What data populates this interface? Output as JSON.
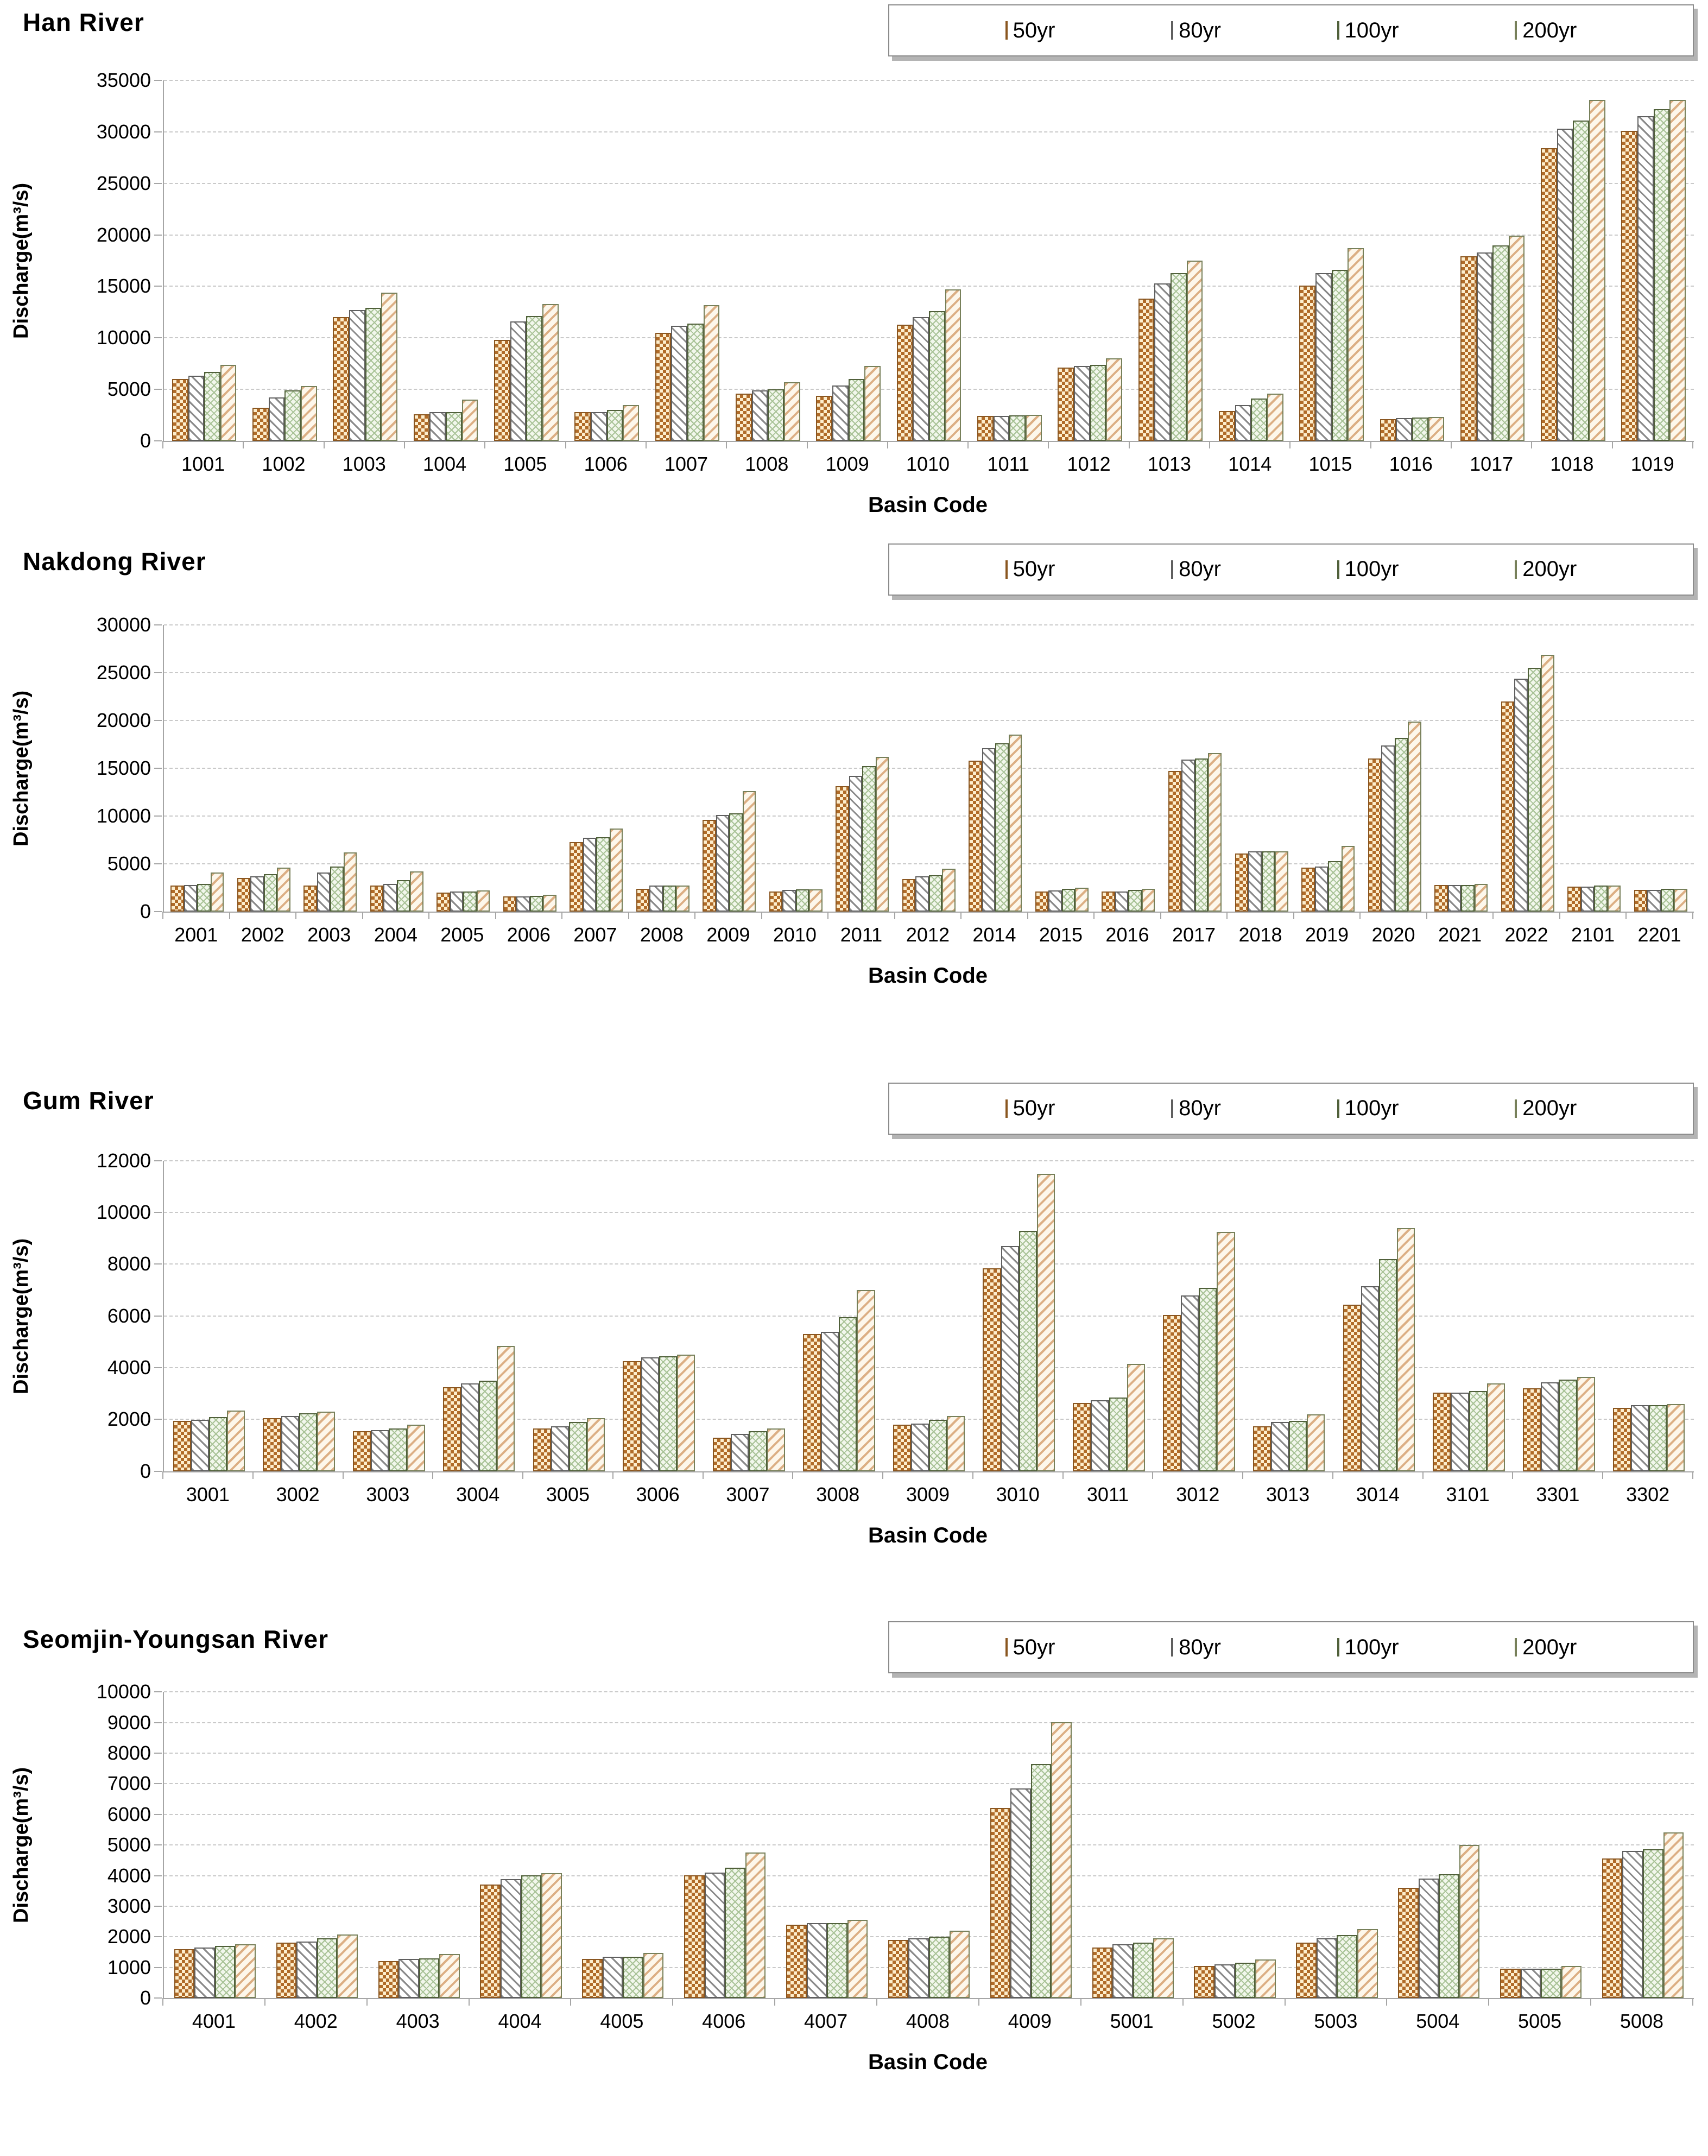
{
  "page": {
    "background": "#ffffff"
  },
  "legend": {
    "items": [
      "50yr",
      "80yr",
      "100yr",
      "200yr"
    ]
  },
  "series_styles": [
    {
      "name": "50yr",
      "pattern": "checkerboard",
      "fill": "#fdeecd",
      "ink": "#b06b28",
      "border": "#8a5620"
    },
    {
      "name": "80yr",
      "pattern": "diagonal-stripe-down",
      "fill": "#ffffff",
      "ink": "#8a8a8a",
      "border": "#5f5f5f"
    },
    {
      "name": "100yr",
      "pattern": "green-crosshatch",
      "fill": "#f2f7ec",
      "ink": "#a8c296",
      "border": "#50603a"
    },
    {
      "name": "200yr",
      "pattern": "diagonal-stripe-up",
      "fill": "#fdf7eb",
      "ink": "#dcaf84",
      "border": "#77805a"
    }
  ],
  "chart_data": [
    {
      "type": "bar",
      "title": "Han River",
      "xlabel": "Basin Code",
      "ylabel": "Discharge(m³/s)",
      "ylim": [
        0,
        35000
      ],
      "ystep": 5000,
      "yticks": [
        "0",
        "5000",
        "10000",
        "15000",
        "20000",
        "25000",
        "30000",
        "35000"
      ],
      "grid": true,
      "legend_position": "top-right",
      "categories": [
        "1001",
        "1002",
        "1003",
        "1004",
        "1005",
        "1006",
        "1007",
        "1008",
        "1009",
        "1010",
        "1011",
        "1012",
        "1013",
        "1014",
        "1015",
        "1016",
        "1017",
        "1018",
        "1019"
      ],
      "series": [
        {
          "name": "50yr",
          "values": [
            6000,
            3200,
            12000,
            2600,
            9800,
            2800,
            10500,
            4600,
            4400,
            11300,
            2400,
            7100,
            13800,
            2900,
            15100,
            2100,
            17900,
            28400,
            30100
          ]
        },
        {
          "name": "80yr",
          "values": [
            6300,
            4200,
            12700,
            2800,
            11600,
            2800,
            11200,
            4900,
            5400,
            12000,
            2450,
            7300,
            15300,
            3500,
            16300,
            2200,
            18300,
            30300,
            31500
          ]
        },
        {
          "name": "100yr",
          "values": [
            6700,
            4900,
            12900,
            2800,
            12100,
            3000,
            11400,
            5000,
            6000,
            12600,
            2500,
            7400,
            16300,
            4100,
            16600,
            2250,
            19000,
            31100,
            32200
          ]
        },
        {
          "name": "200yr",
          "values": [
            7400,
            5300,
            14400,
            4000,
            13300,
            3500,
            13200,
            5700,
            7300,
            14700,
            2550,
            8000,
            17500,
            4600,
            18700,
            2300,
            19900,
            33100,
            33100
          ]
        }
      ]
    },
    {
      "type": "bar",
      "title": "Nakdong River",
      "xlabel": "Basin Code",
      "ylabel": "Discharge(m³/s)",
      "ylim": [
        0,
        30000
      ],
      "ystep": 5000,
      "yticks": [
        "0",
        "5000",
        "10000",
        "15000",
        "20000",
        "25000",
        "30000"
      ],
      "grid": true,
      "legend_position": "top-right",
      "categories": [
        "2001",
        "2002",
        "2003",
        "2004",
        "2005",
        "2006",
        "2007",
        "2008",
        "2009",
        "2010",
        "2011",
        "2012",
        "2014",
        "2015",
        "2016",
        "2017",
        "2018",
        "2019",
        "2020",
        "2021",
        "2022",
        "2101",
        "2201"
      ],
      "series": [
        {
          "name": "50yr",
          "values": [
            2700,
            3500,
            2700,
            2700,
            2000,
            1600,
            7300,
            2400,
            9600,
            2100,
            13100,
            3400,
            15800,
            2100,
            2100,
            14700,
            6100,
            4600,
            16000,
            2800,
            22000,
            2600,
            2300
          ]
        },
        {
          "name": "80yr",
          "values": [
            2800,
            3700,
            4100,
            2900,
            2100,
            1600,
            7700,
            2700,
            10100,
            2300,
            14200,
            3700,
            17100,
            2200,
            2100,
            15900,
            6300,
            4700,
            17400,
            2800,
            24400,
            2600,
            2300
          ]
        },
        {
          "name": "100yr",
          "values": [
            2900,
            3900,
            4700,
            3300,
            2100,
            1650,
            7800,
            2700,
            10300,
            2350,
            15200,
            3800,
            17600,
            2400,
            2300,
            16000,
            6300,
            5300,
            18200,
            2800,
            25500,
            2700,
            2400
          ]
        },
        {
          "name": "200yr",
          "values": [
            4100,
            4600,
            6200,
            4200,
            2200,
            1750,
            8700,
            2750,
            12600,
            2350,
            16200,
            4500,
            18500,
            2500,
            2400,
            16600,
            6300,
            6900,
            19900,
            2900,
            26900,
            2700,
            2400
          ]
        }
      ]
    },
    {
      "type": "bar",
      "title": "Gum River",
      "xlabel": "Basin Code",
      "ylabel": "Discharge(m³/s)",
      "ylim": [
        0,
        12000
      ],
      "ystep": 2000,
      "yticks": [
        "0",
        "2000",
        "4000",
        "6000",
        "8000",
        "10000",
        "12000"
      ],
      "grid": true,
      "legend_position": "top-right",
      "categories": [
        "3001",
        "3002",
        "3003",
        "3004",
        "3005",
        "3006",
        "3007",
        "3008",
        "3009",
        "3010",
        "3011",
        "3012",
        "3013",
        "3014",
        "3101",
        "3301",
        "3302"
      ],
      "series": [
        {
          "name": "50yr",
          "values": [
            1950,
            2050,
            1550,
            3250,
            1650,
            4250,
            1300,
            5300,
            1800,
            7850,
            2650,
            6050,
            1750,
            6450,
            3050,
            3200,
            2450
          ]
        },
        {
          "name": "80yr",
          "values": [
            2000,
            2150,
            1600,
            3400,
            1750,
            4400,
            1450,
            5400,
            1850,
            8700,
            2750,
            6800,
            1900,
            7150,
            3050,
            3450,
            2550
          ]
        },
        {
          "name": "100yr",
          "values": [
            2100,
            2250,
            1650,
            3500,
            1900,
            4450,
            1550,
            5950,
            2000,
            9300,
            2850,
            7100,
            1950,
            8200,
            3100,
            3550,
            2550
          ]
        },
        {
          "name": "200yr",
          "values": [
            2350,
            2300,
            1800,
            4850,
            2050,
            4500,
            1650,
            7000,
            2150,
            11500,
            4150,
            9250,
            2200,
            9400,
            3400,
            3650,
            2600
          ]
        }
      ]
    },
    {
      "type": "bar",
      "title": "Seomjin-Youngsan River",
      "xlabel": "Basin Code",
      "ylabel": "Discharge(m³/s)",
      "ylim": [
        0,
        10000
      ],
      "ystep": 1000,
      "yticks": [
        "0",
        "1000",
        "2000",
        "3000",
        "4000",
        "5000",
        "6000",
        "7000",
        "8000",
        "9000",
        "10000"
      ],
      "grid": true,
      "legend_position": "top-right",
      "categories": [
        "4001",
        "4002",
        "4003",
        "4004",
        "4005",
        "4006",
        "4007",
        "4008",
        "4009",
        "5001",
        "5002",
        "5003",
        "5004",
        "5005",
        "5008"
      ],
      "series": [
        {
          "name": "50yr",
          "values": [
            1600,
            1800,
            1200,
            3700,
            1280,
            4000,
            2400,
            1900,
            6200,
            1650,
            1050,
            1800,
            3600,
            950,
            4550
          ]
        },
        {
          "name": "80yr",
          "values": [
            1650,
            1850,
            1270,
            3880,
            1350,
            4100,
            2450,
            1950,
            6850,
            1750,
            1100,
            1950,
            3900,
            950,
            4800
          ]
        },
        {
          "name": "100yr",
          "values": [
            1700,
            1950,
            1300,
            4000,
            1350,
            4250,
            2450,
            2000,
            7650,
            1800,
            1150,
            2050,
            4050,
            950,
            4850
          ]
        },
        {
          "name": "200yr",
          "values": [
            1750,
            2080,
            1430,
            4080,
            1480,
            4750,
            2550,
            2200,
            9000,
            1950,
            1250,
            2250,
            5000,
            1050,
            5400
          ]
        }
      ]
    }
  ]
}
